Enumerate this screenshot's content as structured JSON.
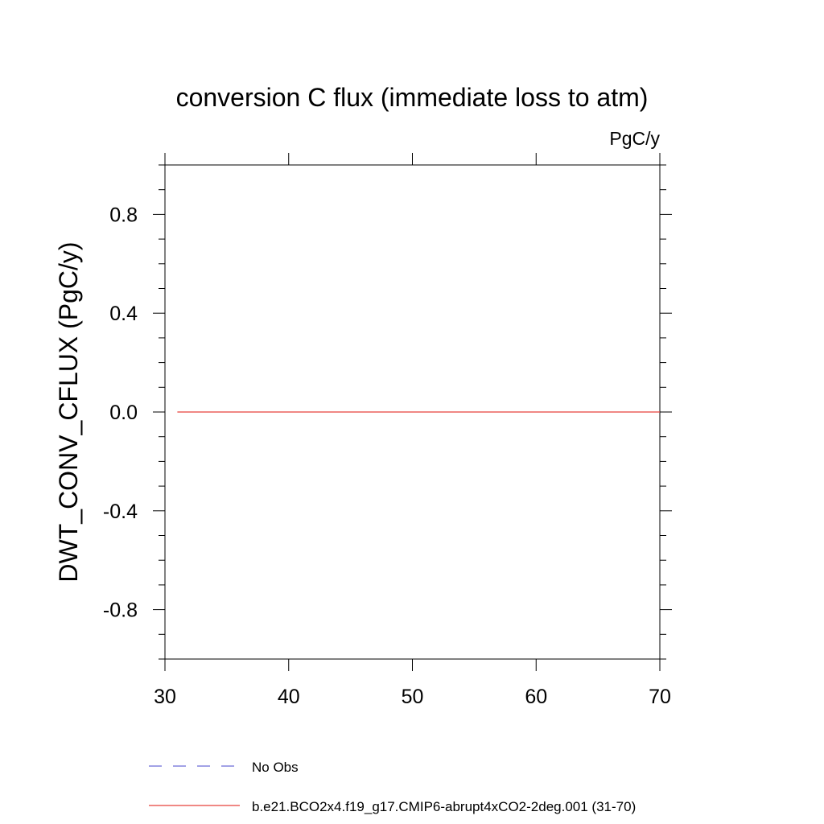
{
  "chart_data": {
    "type": "line",
    "title": "conversion C flux (immediate loss to atm)",
    "units_label": "PgC/y",
    "xlabel": "",
    "ylabel": "DWT_CONV_CFLUX  (PgC/y)",
    "xlim": [
      30,
      70
    ],
    "ylim": [
      -1.0,
      1.0
    ],
    "x_ticks": [
      30,
      40,
      50,
      60,
      70
    ],
    "x_tick_labels": [
      "30",
      "40",
      "50",
      "60",
      "70"
    ],
    "y_ticks": [
      -0.8,
      -0.4,
      0.0,
      0.4,
      0.8
    ],
    "y_tick_labels": [
      "-0.8",
      "-0.4",
      "0.0",
      "0.4",
      "0.8"
    ],
    "grid": false,
    "legend_position": "bottom",
    "series": [
      {
        "name": "No Obs",
        "color": "#6b6bd6",
        "dash": "dashed",
        "x": [],
        "y": []
      },
      {
        "name": "b.e21.BCO2x4.f19_g17.CMIP6-abrupt4xCO2-2deg.001 (31-70)",
        "color": "#e8403a",
        "dash": "solid",
        "x": [
          31,
          35,
          40,
          45,
          50,
          55,
          60,
          65,
          70
        ],
        "y": [
          0,
          0,
          0,
          0,
          0,
          0,
          0,
          0,
          0
        ]
      }
    ]
  }
}
